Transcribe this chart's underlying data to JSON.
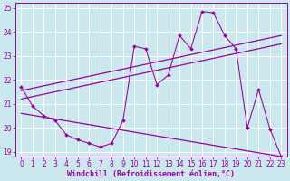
{
  "xlabel": "Windchill (Refroidissement éolien,°C)",
  "background_color": "#cce8ef",
  "grid_color": "#ffffff",
  "line_color": "#990099",
  "xlim": [
    -0.5,
    23.5
  ],
  "ylim": [
    18.8,
    25.2
  ],
  "yticks": [
    19,
    20,
    21,
    22,
    23,
    24,
    25
  ],
  "xticks": [
    0,
    1,
    2,
    3,
    4,
    5,
    6,
    7,
    8,
    9,
    10,
    11,
    12,
    13,
    14,
    15,
    16,
    17,
    18,
    19,
    20,
    21,
    22,
    23
  ],
  "main_x": [
    0,
    1,
    2,
    3,
    4,
    5,
    6,
    7,
    8,
    9,
    10,
    11,
    12,
    13,
    14,
    15,
    16,
    17,
    18,
    19,
    20,
    21,
    22,
    23
  ],
  "main_y": [
    21.7,
    20.9,
    20.5,
    20.3,
    19.7,
    19.5,
    19.35,
    19.2,
    19.35,
    20.3,
    23.4,
    23.3,
    21.8,
    22.2,
    23.85,
    23.3,
    24.85,
    24.8,
    23.85,
    23.3,
    20.0,
    21.6,
    19.95,
    18.8
  ],
  "trend1_x": [
    0,
    23
  ],
  "trend1_y": [
    21.55,
    23.85
  ],
  "trend2_x": [
    0,
    23
  ],
  "trend2_y": [
    21.2,
    23.5
  ],
  "trend3_x": [
    0,
    23
  ],
  "trend3_y": [
    20.6,
    18.8
  ],
  "xlabel_fontsize": 6,
  "tick_fontsize": 5.5
}
